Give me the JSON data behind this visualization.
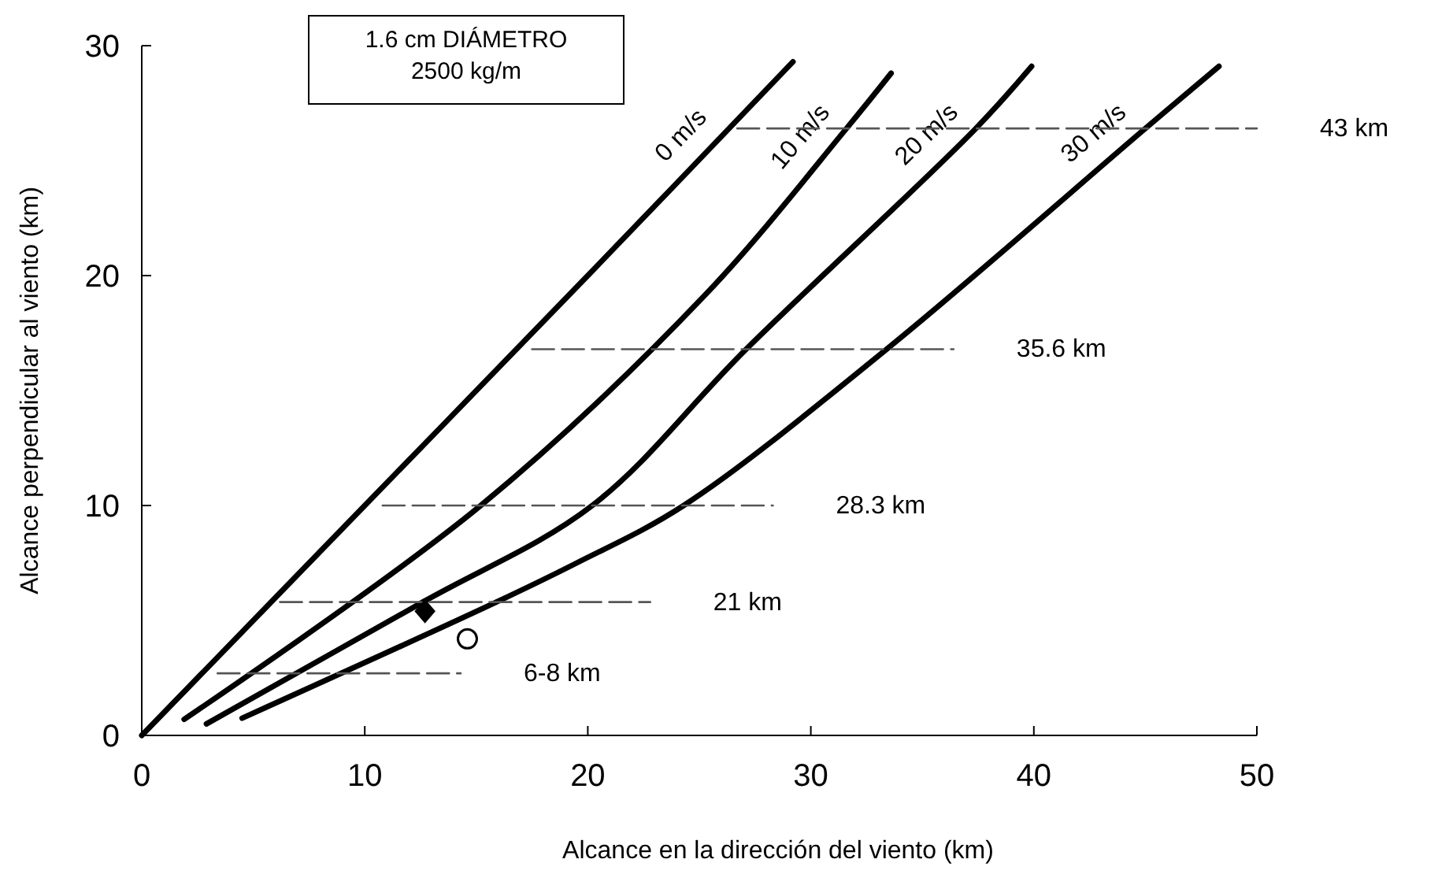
{
  "chart_data": {
    "type": "line",
    "xlabel": "Alcance en la dirección del viento (km)",
    "ylabel": "Alcance perpendicular al viento (km)",
    "xlim": [
      0,
      50
    ],
    "ylim": [
      0,
      30
    ],
    "xticks": [
      0,
      10,
      20,
      30,
      40,
      50
    ],
    "yticks": [
      0,
      10,
      20,
      30
    ],
    "grid": false,
    "annotations": [
      "1.6 cm DIÁMETRO\n2500 kg/m"
    ],
    "series": [
      {
        "name": "0 m/s",
        "color": "#000000",
        "x": [
          0,
          10,
          20,
          29.2
        ],
        "values": [
          0,
          10,
          20,
          29.3
        ]
      },
      {
        "name": "10 m/s",
        "color": "#000000",
        "x": [
          1.9,
          15.2,
          25.3,
          31.6,
          33.6
        ],
        "values": [
          0.7,
          10,
          19.2,
          26.4,
          28.8
        ]
      },
      {
        "name": "20 m/s",
        "color": "#000000",
        "x": [
          2.9,
          12.6,
          20.2,
          27.1,
          37.4,
          39.9
        ],
        "values": [
          0.5,
          5.8,
          10,
          16.8,
          26.4,
          29.1
        ]
      },
      {
        "name": "30 m/s",
        "color": "#000000",
        "x": [
          4.5,
          15.9,
          19.5,
          24.3,
          33.4,
          45,
          48.3
        ],
        "values": [
          0.75,
          5.8,
          7.5,
          10,
          16.8,
          26.4,
          29.1
        ]
      },
      {
        "name": "43 km",
        "color": "#555555",
        "line_style": "dashed",
        "x": [
          26.7,
          50
        ],
        "values": [
          26.4,
          26.4
        ]
      },
      {
        "name": "35.6 km",
        "color": "#555555",
        "line_style": "dashed",
        "x": [
          17.5,
          36.4
        ],
        "values": [
          16.8,
          16.8
        ]
      },
      {
        "name": "28.3 km",
        "color": "#555555",
        "line_style": "dashed",
        "x": [
          10.8,
          28.3
        ],
        "values": [
          10,
          10
        ]
      },
      {
        "name": "21 km",
        "color": "#555555",
        "line_style": "dashed",
        "x": [
          6.2,
          22.8
        ],
        "values": [
          5.8,
          5.8
        ]
      },
      {
        "name": "6-8 km",
        "color": "#555555",
        "line_style": "dashed",
        "x": [
          3.4,
          14.3
        ],
        "values": [
          2.7,
          2.7
        ]
      },
      {
        "type": "scatter",
        "marker": "diamond",
        "color": "#000000",
        "x": [
          12.7
        ],
        "values": [
          5.4
        ]
      },
      {
        "type": "scatter",
        "marker": "circle",
        "color": "#000000",
        "x": [
          14.6
        ],
        "values": [
          4.2
        ]
      }
    ]
  }
}
